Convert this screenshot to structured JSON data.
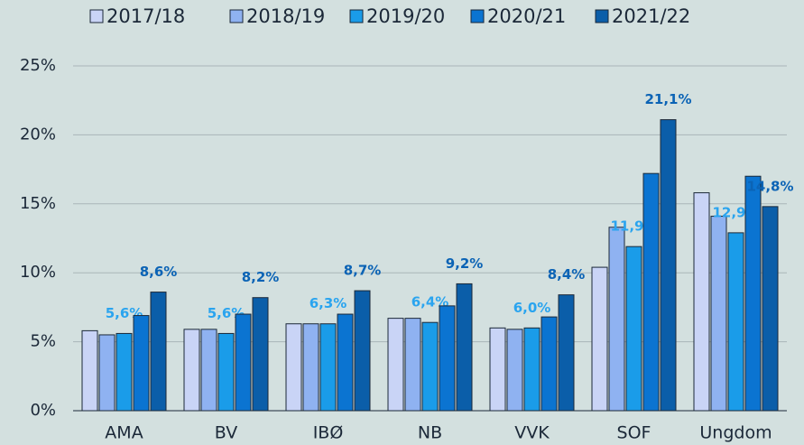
{
  "chart_data": {
    "type": "bar",
    "categories": [
      "AMA",
      "BV",
      "IBØ",
      "NB",
      "VVK",
      "SOF",
      "Ungdom"
    ],
    "series": [
      {
        "name": "2017/18",
        "color": "#c9d4f6",
        "values": [
          5.8,
          5.9,
          6.3,
          6.7,
          6.0,
          10.4,
          15.8
        ]
      },
      {
        "name": "2018/19",
        "color": "#8fb2f1",
        "values": [
          5.5,
          5.9,
          6.3,
          6.7,
          5.9,
          13.3,
          14.1
        ]
      },
      {
        "name": "2019/20",
        "color": "#1a9ce9",
        "values": [
          5.6,
          5.6,
          6.3,
          6.4,
          6.0,
          11.9,
          12.9
        ],
        "value_labels": [
          "5,6%",
          "5,6%",
          "6,3%",
          "6,4%",
          "6,0%",
          "11,9%",
          "12,9%"
        ]
      },
      {
        "name": "2020/21",
        "color": "#0b74d1",
        "values": [
          6.9,
          7.0,
          7.0,
          7.6,
          6.8,
          17.2,
          17.0
        ]
      },
      {
        "name": "2021/22",
        "color": "#0b5ea9",
        "values": [
          8.6,
          8.2,
          8.7,
          9.2,
          8.4,
          21.1,
          14.8
        ],
        "value_labels": [
          "8,6%",
          "8,2%",
          "8,7%",
          "9,2%",
          "8,4%",
          "21,1%",
          "14,8%"
        ]
      }
    ],
    "ylim": [
      0,
      25
    ],
    "yticks": [
      {
        "value": 0,
        "label": "0%"
      },
      {
        "value": 5,
        "label": "5%"
      },
      {
        "value": 10,
        "label": "10%"
      },
      {
        "value": 15,
        "label": "15%"
      },
      {
        "value": 20,
        "label": "20%"
      },
      {
        "value": 25,
        "label": "25%"
      }
    ],
    "grid": true,
    "legend": "top"
  }
}
